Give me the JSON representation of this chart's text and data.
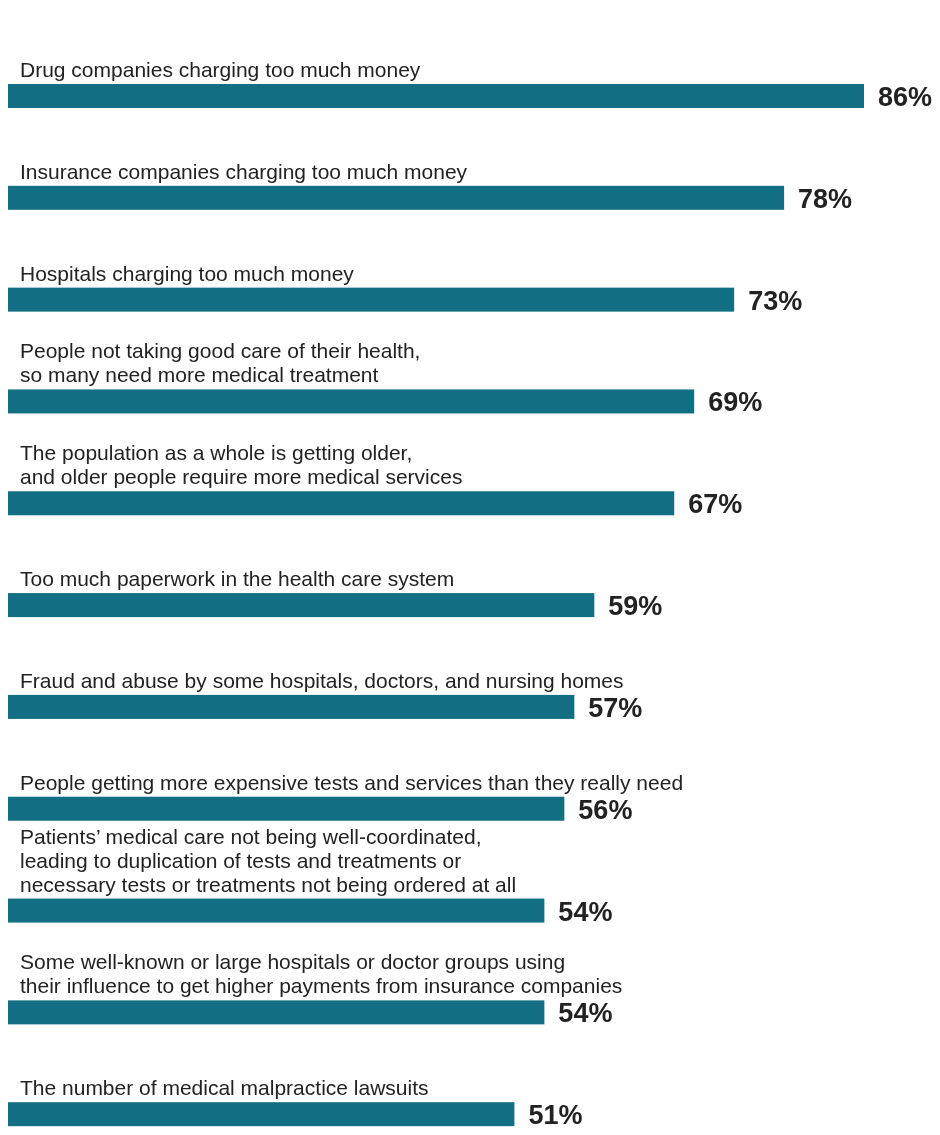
{
  "chart_data": {
    "type": "bar",
    "orientation": "horizontal",
    "categories": [
      "Drug companies charging too much money",
      "Insurance companies charging too much money",
      "Hospitals charging too much money",
      "People not taking good care of their health,\nso many need more medical treatment",
      "The population as a whole is getting older,\nand older people require more medical services",
      "Too much paperwork in the health care system",
      "Fraud and abuse by some hospitals, doctors, and nursing homes",
      "People getting more expensive tests and services than they really need",
      "Patients’ medical care not being well-coordinated,\nleading to duplication of tests and treatments or\nnecessary tests or treatments not being ordered at all",
      "Some well-known or large hospitals or doctor groups using\ntheir influence to get higher payments from insurance companies",
      "The number of medical malpractice lawsuits"
    ],
    "values": [
      86,
      78,
      73,
      69,
      67,
      59,
      57,
      56,
      54,
      54,
      51
    ],
    "value_labels": [
      "86%",
      "78%",
      "73%",
      "69%",
      "67%",
      "59%",
      "57%",
      "56%",
      "54%",
      "54%",
      "51%"
    ],
    "color": "#126e82"
  }
}
